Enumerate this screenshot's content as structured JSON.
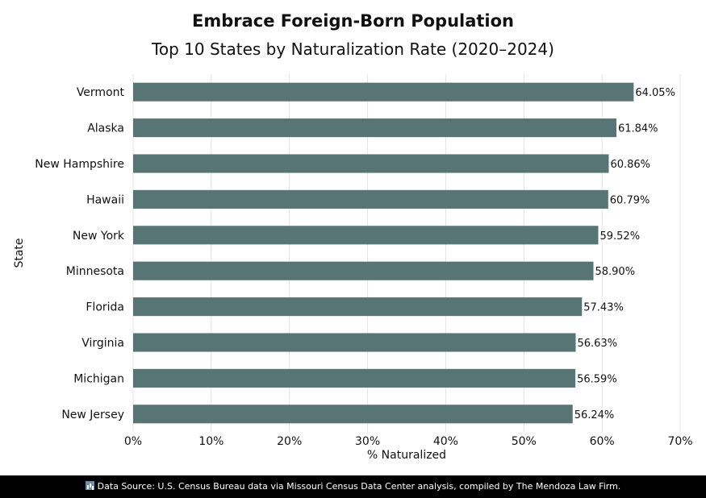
{
  "chart_data": {
    "type": "bar",
    "orientation": "horizontal",
    "title": "Embrace Foreign-Born Population",
    "subtitle": "Top 10 States by Naturalization Rate (2020–2024)",
    "xlabel": "% Naturalized",
    "ylabel": "State",
    "xlim": [
      0,
      70
    ],
    "xticks": [
      0,
      10,
      20,
      30,
      40,
      50,
      60,
      70
    ],
    "xtick_labels": [
      "0%",
      "10%",
      "20%",
      "30%",
      "40%",
      "50%",
      "60%",
      "70%"
    ],
    "categories": [
      "Vermont",
      "Alaska",
      "New Hampshire",
      "Hawaii",
      "New York",
      "Minnesota",
      "Florida",
      "Virginia",
      "Michigan",
      "New Jersey"
    ],
    "values": [
      64.05,
      61.84,
      60.86,
      60.79,
      59.52,
      58.9,
      57.43,
      56.63,
      56.59,
      56.24
    ],
    "value_labels": [
      "64.05%",
      "61.84%",
      "60.86%",
      "60.79%",
      "59.52%",
      "58.90%",
      "57.43%",
      "56.63%",
      "56.59%",
      "56.24%"
    ],
    "grid": "vertical",
    "bar_color": "#567574"
  },
  "footer": {
    "icon": "bar-chart-icon",
    "text": "Data Source:  U.S. Census Bureau data via Missouri Census Data Center analysis, compiled by The Mendoza Law Firm."
  }
}
